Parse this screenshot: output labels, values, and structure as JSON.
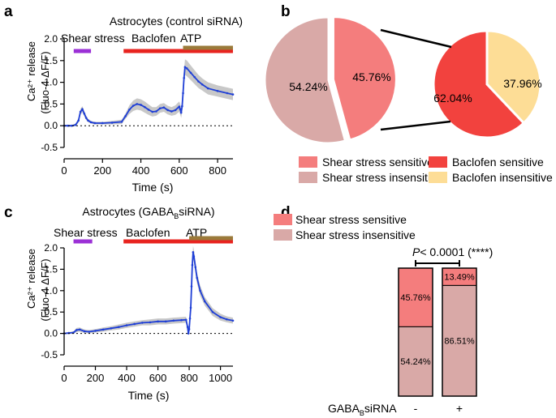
{
  "panel_labels": {
    "a": "a",
    "b": "b",
    "c": "c",
    "d": "d"
  },
  "colors": {
    "trace": "#1f3fd6",
    "band": "#c8c8c8",
    "shear_bar": "#9b30d6",
    "baclofen_bar": "#e8231f",
    "atp_bar": "#9a7a3a",
    "shear_sensitive": "#f47d7d",
    "shear_insensitive": "#d9a9a7",
    "baclofen_sensitive": "#f2423e",
    "baclofen_insensitive": "#fddd96"
  },
  "chart_data": [
    {
      "id": "a",
      "type": "line",
      "title": "Astrocytes (control siRNA)",
      "xlabel": "Time (s)",
      "ylabel_line1": "Ca²⁺ release",
      "ylabel_line2": "(Fluo-4 ΔF/F)",
      "xlim": [
        0,
        880
      ],
      "ylim": [
        -0.5,
        2.0
      ],
      "xticks": [
        0,
        200,
        400,
        600,
        800
      ],
      "yticks": [
        -0.5,
        0.0,
        0.5,
        1.0,
        1.5,
        2.0
      ],
      "ytick_labels": [
        "-0.5",
        "0.0",
        "0.5",
        "1.0",
        "1.5",
        "2.0"
      ],
      "treatments": [
        {
          "label": "Shear stress",
          "start": 50,
          "end": 140,
          "color_key": "shear_bar"
        },
        {
          "label": "Baclofen",
          "start": 310,
          "end": 880,
          "color_key": "baclofen_bar"
        },
        {
          "label": "ATP",
          "start": 620,
          "end": 880,
          "color_key": "atp_bar"
        }
      ],
      "x": [
        0,
        20,
        40,
        60,
        75,
        85,
        95,
        105,
        115,
        125,
        140,
        160,
        200,
        250,
        300,
        320,
        340,
        360,
        380,
        400,
        420,
        440,
        460,
        480,
        500,
        520,
        540,
        560,
        580,
        600,
        605,
        610,
        615,
        620,
        625,
        630,
        640,
        660,
        680,
        700,
        720,
        750,
        800,
        850,
        880
      ],
      "y": [
        0,
        0,
        0,
        0.02,
        0.12,
        0.32,
        0.38,
        0.28,
        0.18,
        0.12,
        0.08,
        0.06,
        0.06,
        0.07,
        0.09,
        0.22,
        0.37,
        0.46,
        0.5,
        0.48,
        0.43,
        0.37,
        0.32,
        0.33,
        0.4,
        0.42,
        0.36,
        0.33,
        0.36,
        0.44,
        0.38,
        0.3,
        0.45,
        0.75,
        1.1,
        1.35,
        1.32,
        1.22,
        1.12,
        1.02,
        0.95,
        0.86,
        0.8,
        0.75,
        0.72
      ],
      "err": [
        0.02,
        0.02,
        0.02,
        0.03,
        0.05,
        0.07,
        0.07,
        0.06,
        0.05,
        0.04,
        0.03,
        0.03,
        0.03,
        0.04,
        0.05,
        0.06,
        0.1,
        0.12,
        0.13,
        0.13,
        0.13,
        0.12,
        0.11,
        0.1,
        0.1,
        0.1,
        0.1,
        0.1,
        0.11,
        0.12,
        0.12,
        0.12,
        0.13,
        0.15,
        0.17,
        0.18,
        0.18,
        0.17,
        0.16,
        0.15,
        0.14,
        0.14,
        0.13,
        0.13,
        0.13
      ]
    },
    {
      "id": "b",
      "type": "pie",
      "pies": [
        {
          "name": "shear",
          "slices": [
            {
              "label": "Shear stress sensitive",
              "value": 45.76,
              "text": "45.76%",
              "color_key": "shear_sensitive",
              "exploded": true
            },
            {
              "label": "Shear stress insensitive",
              "value": 54.24,
              "text": "54.24%",
              "color_key": "shear_insensitive",
              "exploded": false
            }
          ]
        },
        {
          "name": "baclofen",
          "slices": [
            {
              "label": "Baclofen sensitive",
              "value": 62.04,
              "text": "62.04%",
              "color_key": "baclofen_sensitive"
            },
            {
              "label": "Baclofen insensitive",
              "value": 37.96,
              "text": "37.96%",
              "color_key": "baclofen_insensitive"
            }
          ]
        }
      ],
      "legend": [
        {
          "label": "Shear stress sensitive",
          "color_key": "shear_sensitive"
        },
        {
          "label": "Shear stress insensitive",
          "color_key": "shear_insensitive"
        },
        {
          "label": "Baclofen sensitive",
          "color_key": "baclofen_sensitive"
        },
        {
          "label": "Baclofen insensitive",
          "color_key": "baclofen_insensitive"
        }
      ]
    },
    {
      "id": "c",
      "type": "line",
      "title_pre": "Astrocytes (GABA",
      "title_sub": "B",
      "title_post": "siRNA)",
      "xlabel": "Time (s)",
      "ylabel_line1": "Ca²⁺ release",
      "ylabel_line2": "(Fluo-4 ΔF/F)",
      "xlim": [
        0,
        1080
      ],
      "ylim": [
        -0.5,
        2.0
      ],
      "xticks": [
        0,
        200,
        400,
        600,
        800,
        1000
      ],
      "yticks": [
        -0.5,
        0.0,
        0.5,
        1.0,
        1.5,
        2.0
      ],
      "ytick_labels": [
        "-0.5",
        "0.0",
        "0.5",
        "1.0",
        "1.5",
        "2.0"
      ],
      "treatments": [
        {
          "label": "Shear stress",
          "start": 60,
          "end": 180,
          "color_key": "shear_bar"
        },
        {
          "label": "Baclofen",
          "start": 380,
          "end": 1080,
          "color_key": "baclofen_bar"
        },
        {
          "label": "ATP",
          "start": 800,
          "end": 1080,
          "color_key": "atp_bar"
        }
      ],
      "x": [
        0,
        30,
        60,
        80,
        100,
        130,
        160,
        200,
        250,
        300,
        350,
        400,
        450,
        500,
        550,
        600,
        650,
        700,
        750,
        780,
        790,
        795,
        800,
        805,
        810,
        815,
        820,
        825,
        830,
        840,
        850,
        870,
        900,
        950,
        1000,
        1040,
        1080
      ],
      "y": [
        0,
        0.01,
        0.02,
        0.08,
        0.09,
        0.05,
        0.04,
        0.06,
        0.09,
        0.12,
        0.15,
        0.19,
        0.22,
        0.25,
        0.26,
        0.28,
        0.28,
        0.3,
        0.31,
        0.32,
        0.15,
        0.0,
        0.1,
        0.35,
        0.6,
        1.1,
        1.6,
        1.9,
        1.8,
        1.55,
        1.3,
        1.0,
        0.75,
        0.5,
        0.38,
        0.33,
        0.3
      ],
      "err": [
        0.02,
        0.02,
        0.03,
        0.05,
        0.05,
        0.04,
        0.04,
        0.04,
        0.05,
        0.05,
        0.06,
        0.06,
        0.06,
        0.06,
        0.07,
        0.07,
        0.07,
        0.07,
        0.07,
        0.07,
        0.06,
        0.05,
        0.06,
        0.08,
        0.1,
        0.12,
        0.14,
        0.15,
        0.15,
        0.14,
        0.13,
        0.12,
        0.1,
        0.09,
        0.08,
        0.07,
        0.07
      ]
    },
    {
      "id": "d",
      "type": "bar",
      "stacked": true,
      "categories": [
        "-",
        "+"
      ],
      "xlabel_pre": "GABA",
      "xlabel_sub": "B",
      "xlabel_post": "siRNA",
      "series": [
        {
          "name": "Shear stress insensitive",
          "values": [
            54.24,
            86.51
          ],
          "labels": [
            "54.24%",
            "86.51%"
          ],
          "color_key": "shear_insensitive"
        },
        {
          "name": "Shear stress sensitive",
          "values": [
            45.76,
            13.49
          ],
          "labels": [
            "45.76%",
            "13.49%"
          ],
          "color_key": "shear_sensitive"
        }
      ],
      "ylim": [
        0,
        100
      ],
      "significance": {
        "prefix": "P",
        "text": "< 0.0001 (****)"
      },
      "legend": [
        {
          "label": "Shear stress sensitive",
          "color_key": "shear_sensitive"
        },
        {
          "label": "Shear stress insensitive",
          "color_key": "shear_insensitive"
        }
      ]
    }
  ]
}
